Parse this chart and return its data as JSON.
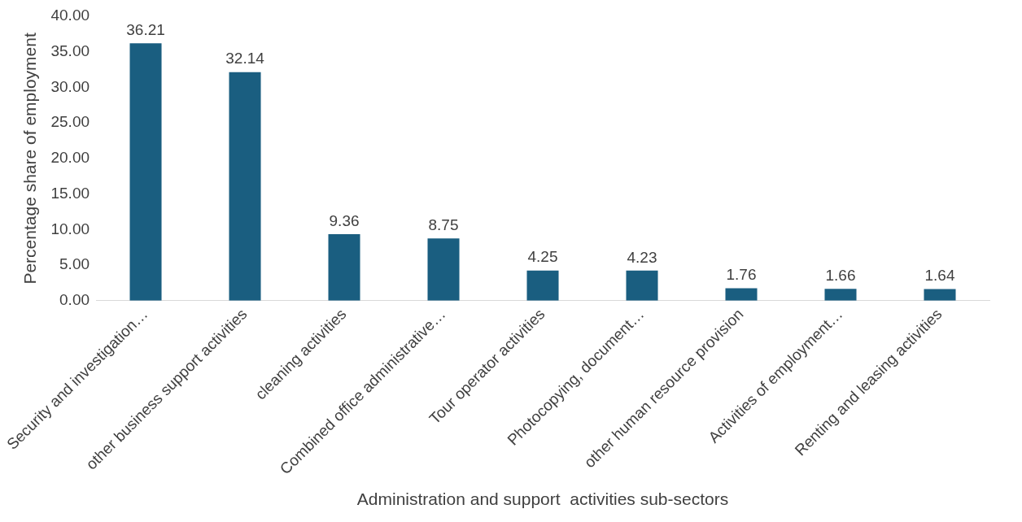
{
  "chart_data": {
    "type": "bar",
    "xlabel": "Administration and support  activities sub-sectors",
    "ylabel": "Percentage share of employment",
    "categories": [
      "Security and investigation…",
      "other business support activities",
      "cleaning activities",
      "Combined office administrative…",
      "Tour operator activities",
      "Photocopying, document…",
      "other human resource provision",
      "Activities of employment…",
      "Renting and leasing activities"
    ],
    "values": [
      36.21,
      32.14,
      9.36,
      8.75,
      4.25,
      4.23,
      1.76,
      1.66,
      1.64
    ],
    "color": "#1a5e80",
    "data_labels": true,
    "grid": false,
    "legend": false,
    "ylim": [
      0,
      40
    ],
    "yticks": [
      {
        "value": 0,
        "label": "0.00"
      },
      {
        "value": 5,
        "label": "5.00"
      },
      {
        "value": 10,
        "label": "10.00"
      },
      {
        "value": 15,
        "label": "15.00"
      },
      {
        "value": 20,
        "label": "20.00"
      },
      {
        "value": 25,
        "label": "25.00"
      },
      {
        "value": 30,
        "label": "30.00"
      },
      {
        "value": 35,
        "label": "35.00"
      },
      {
        "value": 40,
        "label": "40.00"
      }
    ]
  }
}
